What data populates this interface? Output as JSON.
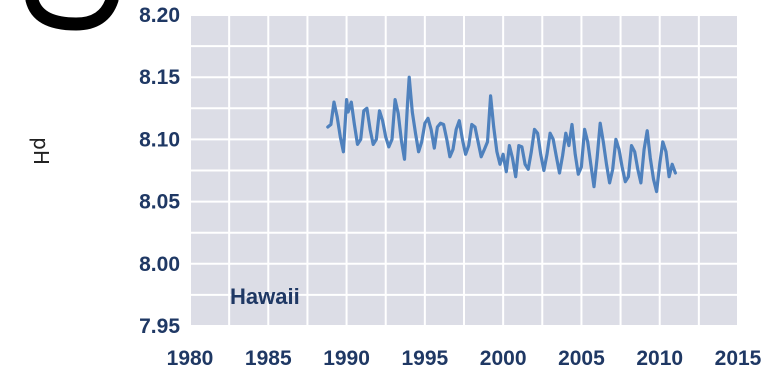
{
  "chart_data": {
    "type": "line",
    "title": "",
    "xlabel": "",
    "ylabel": "pH",
    "annotation": "Hawaii",
    "xlim": [
      1980,
      2015
    ],
    "ylim": [
      7.95,
      8.2
    ],
    "x_ticks": [
      "1980",
      "1985",
      "1990",
      "1995",
      "2000",
      "2005",
      "2010",
      "2015"
    ],
    "y_ticks": [
      "7.95",
      "8.00",
      "8.05",
      "8.10",
      "8.15",
      "8.20"
    ],
    "grid": true,
    "colors": {
      "line": "#4f81bd",
      "plot_background": "#dcdde6",
      "grid": "#ffffff",
      "text": "#1f3864"
    },
    "series": [
      {
        "points": [
          [
            1988.8,
            8.11
          ],
          [
            1989.0,
            8.112
          ],
          [
            1989.2,
            8.13
          ],
          [
            1989.4,
            8.118
          ],
          [
            1989.6,
            8.102
          ],
          [
            1989.8,
            8.09
          ],
          [
            1990.0,
            8.132
          ],
          [
            1990.1,
            8.122
          ],
          [
            1990.3,
            8.13
          ],
          [
            1990.5,
            8.112
          ],
          [
            1990.7,
            8.096
          ],
          [
            1990.9,
            8.1
          ],
          [
            1991.1,
            8.123
          ],
          [
            1991.3,
            8.125
          ],
          [
            1991.5,
            8.108
          ],
          [
            1991.7,
            8.096
          ],
          [
            1991.9,
            8.1
          ],
          [
            1992.1,
            8.123
          ],
          [
            1992.3,
            8.115
          ],
          [
            1992.5,
            8.102
          ],
          [
            1992.7,
            8.094
          ],
          [
            1992.9,
            8.1
          ],
          [
            1993.1,
            8.132
          ],
          [
            1993.3,
            8.121
          ],
          [
            1993.5,
            8.099
          ],
          [
            1993.7,
            8.084
          ],
          [
            1993.9,
            8.13
          ],
          [
            1994.0,
            8.15
          ],
          [
            1994.2,
            8.122
          ],
          [
            1994.4,
            8.105
          ],
          [
            1994.6,
            8.09
          ],
          [
            1994.8,
            8.098
          ],
          [
            1995.0,
            8.113
          ],
          [
            1995.2,
            8.117
          ],
          [
            1995.4,
            8.108
          ],
          [
            1995.6,
            8.093
          ],
          [
            1995.8,
            8.11
          ],
          [
            1996.0,
            8.113
          ],
          [
            1996.2,
            8.112
          ],
          [
            1996.4,
            8.1
          ],
          [
            1996.6,
            8.086
          ],
          [
            1996.8,
            8.092
          ],
          [
            1997.0,
            8.108
          ],
          [
            1997.2,
            8.115
          ],
          [
            1997.4,
            8.1
          ],
          [
            1997.6,
            8.088
          ],
          [
            1997.8,
            8.095
          ],
          [
            1998.0,
            8.112
          ],
          [
            1998.2,
            8.11
          ],
          [
            1998.4,
            8.098
          ],
          [
            1998.6,
            8.086
          ],
          [
            1998.8,
            8.092
          ],
          [
            1999.0,
            8.098
          ],
          [
            1999.2,
            8.135
          ],
          [
            1999.4,
            8.11
          ],
          [
            1999.6,
            8.09
          ],
          [
            1999.8,
            8.08
          ],
          [
            2000.0,
            8.088
          ],
          [
            2000.2,
            8.074
          ],
          [
            2000.4,
            8.095
          ],
          [
            2000.6,
            8.085
          ],
          [
            2000.8,
            8.07
          ],
          [
            2001.0,
            8.095
          ],
          [
            2001.2,
            8.094
          ],
          [
            2001.4,
            8.08
          ],
          [
            2001.6,
            8.076
          ],
          [
            2001.8,
            8.09
          ],
          [
            2002.0,
            8.108
          ],
          [
            2002.2,
            8.105
          ],
          [
            2002.4,
            8.088
          ],
          [
            2002.6,
            8.075
          ],
          [
            2002.8,
            8.088
          ],
          [
            2003.0,
            8.105
          ],
          [
            2003.2,
            8.1
          ],
          [
            2003.4,
            8.086
          ],
          [
            2003.6,
            8.073
          ],
          [
            2003.8,
            8.087
          ],
          [
            2004.0,
            8.105
          ],
          [
            2004.2,
            8.095
          ],
          [
            2004.4,
            8.112
          ],
          [
            2004.6,
            8.088
          ],
          [
            2004.8,
            8.072
          ],
          [
            2005.0,
            8.078
          ],
          [
            2005.2,
            8.108
          ],
          [
            2005.4,
            8.098
          ],
          [
            2005.6,
            8.08
          ],
          [
            2005.8,
            8.062
          ],
          [
            2006.0,
            8.085
          ],
          [
            2006.2,
            8.113
          ],
          [
            2006.4,
            8.098
          ],
          [
            2006.6,
            8.08
          ],
          [
            2006.8,
            8.065
          ],
          [
            2007.0,
            8.076
          ],
          [
            2007.2,
            8.1
          ],
          [
            2007.4,
            8.092
          ],
          [
            2007.6,
            8.078
          ],
          [
            2007.8,
            8.066
          ],
          [
            2008.0,
            8.07
          ],
          [
            2008.2,
            8.095
          ],
          [
            2008.4,
            8.09
          ],
          [
            2008.6,
            8.076
          ],
          [
            2008.8,
            8.065
          ],
          [
            2009.0,
            8.092
          ],
          [
            2009.2,
            8.107
          ],
          [
            2009.4,
            8.085
          ],
          [
            2009.6,
            8.068
          ],
          [
            2009.8,
            8.058
          ],
          [
            2010.0,
            8.08
          ],
          [
            2010.2,
            8.098
          ],
          [
            2010.4,
            8.09
          ],
          [
            2010.6,
            8.07
          ],
          [
            2010.8,
            8.08
          ],
          [
            2011.0,
            8.073
          ]
        ]
      }
    ]
  }
}
